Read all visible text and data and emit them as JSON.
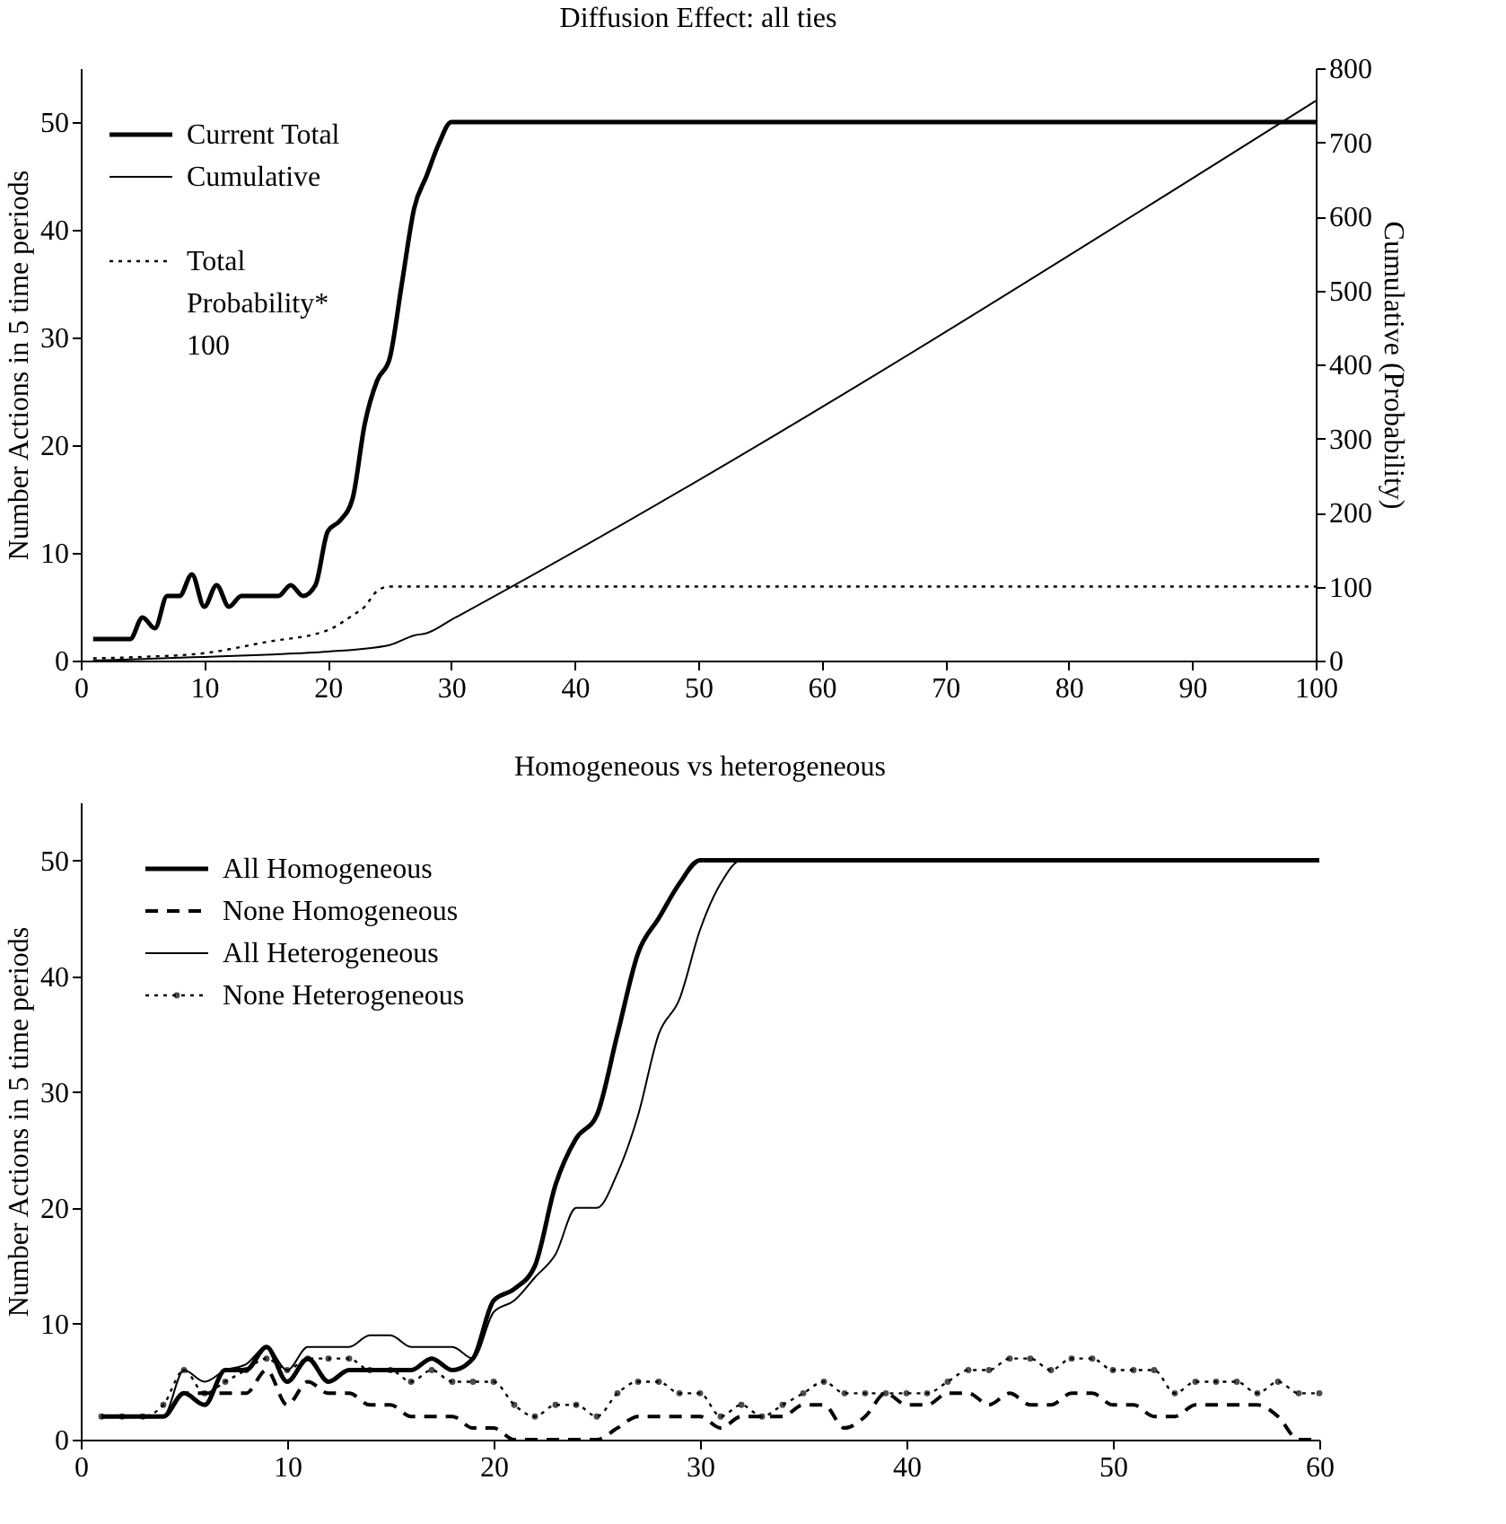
{
  "chart_data": [
    {
      "type": "line",
      "title": "Diffusion Effect: all ties",
      "ylabel": "Number Actions in 5 time periods",
      "y2label": "Cumulative (Probability)",
      "xlim": [
        0,
        100
      ],
      "xticks": [
        0,
        10,
        20,
        30,
        40,
        50,
        60,
        70,
        80,
        90,
        100
      ],
      "ylim": [
        0,
        55
      ],
      "yticks": [
        0,
        10,
        20,
        30,
        40,
        50
      ],
      "y2lim": [
        0,
        800
      ],
      "y2ticks": [
        0,
        100,
        200,
        300,
        400,
        500,
        600,
        700,
        800
      ],
      "legend": "top left",
      "grid": false,
      "series": [
        {
          "name": "Current Total",
          "color": "#000000",
          "line_style": "solid",
          "x": [
            1,
            2,
            3,
            4,
            5,
            6,
            7,
            8,
            9,
            10,
            11,
            12,
            13,
            14,
            15,
            16,
            17,
            18,
            19,
            20,
            21,
            22,
            23,
            24,
            25,
            26,
            27,
            28,
            29,
            30,
            100
          ],
          "values": [
            2,
            2,
            2,
            2,
            4,
            3,
            6,
            6,
            8,
            5,
            7,
            5,
            6,
            6,
            6,
            6,
            7,
            6,
            7,
            12,
            13,
            15,
            22,
            26,
            28,
            35,
            42,
            45,
            48,
            50,
            50
          ]
        },
        {
          "name": "Cumulative",
          "color": "#000000",
          "line_style": "solid",
          "axis": "y2",
          "x": [
            1,
            5,
            10,
            15,
            20,
            25,
            27,
            28,
            30,
            100
          ],
          "values": [
            0,
            2,
            5,
            8,
            12,
            21,
            34,
            37,
            55,
            756
          ]
        },
        {
          "name": "Total Probability* 100",
          "color": "#000000",
          "line_style": "dotted",
          "axis": "y2",
          "x": [
            1,
            5,
            10,
            15,
            20,
            22,
            23,
            24,
            25,
            100
          ],
          "values": [
            3,
            5,
            10,
            25,
            41,
            61,
            73,
            94,
            100,
            100
          ]
        }
      ]
    },
    {
      "type": "line",
      "title": "Homogeneous vs heterogeneous",
      "ylabel": "Number Actions in 5 time periods",
      "xlim": [
        0,
        60
      ],
      "xticks": [
        0,
        10,
        20,
        30,
        40,
        50,
        60
      ],
      "ylim": [
        0,
        55
      ],
      "yticks": [
        0,
        10,
        20,
        30,
        40,
        50
      ],
      "legend": "top left",
      "grid": false,
      "x": [
        1,
        2,
        3,
        4,
        5,
        6,
        7,
        8,
        9,
        10,
        11,
        12,
        13,
        14,
        15,
        16,
        17,
        18,
        19,
        20,
        21,
        22,
        23,
        24,
        25,
        26,
        27,
        28,
        29,
        30,
        31,
        32,
        33,
        34,
        35,
        36,
        37,
        38,
        39,
        40,
        41,
        42,
        43,
        44,
        45,
        46,
        47,
        48,
        49,
        50,
        51,
        52,
        53,
        54,
        55,
        56,
        57,
        58,
        59,
        60
      ],
      "series": [
        {
          "name": "All Homogeneous",
          "color": "#000000",
          "line_style": "solid",
          "values": [
            2,
            2,
            2,
            2,
            4,
            3,
            6,
            6,
            8,
            5,
            7,
            5,
            6,
            6,
            6,
            6,
            7,
            6,
            7,
            12,
            13,
            15,
            22,
            26,
            28,
            35,
            42,
            45,
            48,
            50,
            50,
            50,
            50,
            50,
            50,
            50,
            50,
            50,
            50,
            50,
            50,
            50,
            50,
            50,
            50,
            50,
            50,
            50,
            50,
            50,
            50,
            50,
            50,
            50,
            50,
            50,
            50,
            50,
            50,
            50
          ]
        },
        {
          "name": "None Homogeneous",
          "color": "#000000",
          "line_style": "dashed",
          "values": [
            2,
            2,
            2,
            2,
            4,
            4,
            4,
            4,
            6,
            3,
            5,
            4,
            4,
            3,
            3,
            2,
            2,
            2,
            1,
            1,
            0,
            0,
            0,
            0,
            0,
            1,
            2,
            2,
            2,
            2,
            1,
            2,
            2,
            2,
            3,
            3,
            1,
            2,
            4,
            3,
            3,
            4,
            4,
            3,
            4,
            3,
            3,
            4,
            4,
            3,
            3,
            2,
            2,
            3,
            3,
            3,
            3,
            2,
            0,
            0
          ]
        },
        {
          "name": "All Heterogeneous",
          "color": "#000000",
          "line_style": "solid",
          "values": [
            2,
            2,
            2,
            2,
            6,
            5,
            6,
            6.5,
            8,
            6,
            8,
            8,
            8,
            9,
            9,
            8,
            8,
            8,
            7,
            11,
            12,
            14,
            16,
            20,
            20,
            23,
            28,
            35,
            38,
            44,
            48,
            50,
            50,
            50,
            50,
            50,
            50,
            50,
            50,
            50,
            50,
            50,
            50,
            50,
            50,
            50,
            50,
            50,
            50,
            50,
            50,
            50,
            50,
            50,
            50,
            50,
            50,
            50,
            50,
            50
          ]
        },
        {
          "name": "None Heterogeneous",
          "color": "#000000",
          "line_style": "dotted",
          "marker": "circle",
          "values": [
            2,
            2,
            2,
            3,
            6,
            4,
            5,
            6,
            7,
            6,
            7,
            7,
            7,
            6,
            6,
            5,
            6,
            5,
            5,
            5,
            3,
            2,
            3,
            3,
            2,
            4,
            5,
            5,
            4,
            4,
            2,
            3,
            2,
            3,
            4,
            5,
            4,
            4,
            4,
            4,
            4,
            5,
            6,
            6,
            7,
            7,
            6,
            7,
            7,
            6,
            6,
            6,
            4,
            5,
            5,
            5,
            4,
            5,
            4,
            4
          ]
        }
      ]
    }
  ]
}
